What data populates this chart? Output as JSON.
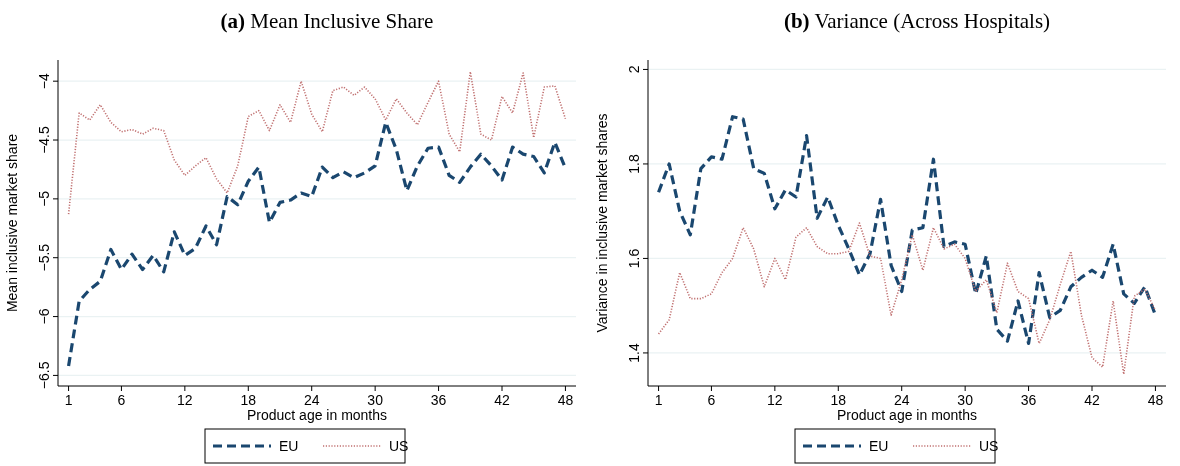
{
  "chart_data": [
    {
      "type": "line",
      "title": "(a) Mean Inclusive Share",
      "xlabel": "Product age in months",
      "ylabel": "Mean inclusive market share",
      "xlim": [
        0,
        49
      ],
      "xticks": [
        1,
        6,
        12,
        18,
        24,
        30,
        36,
        42,
        48
      ],
      "ylim": [
        -6.59,
        -3.82
      ],
      "yticks": [
        -6.5,
        -6,
        -5.5,
        -5,
        -4.5,
        -4
      ],
      "grid": "y",
      "legend": "bottom",
      "x": [
        1,
        2,
        3,
        4,
        5,
        6,
        7,
        8,
        9,
        10,
        11,
        12,
        13,
        14,
        15,
        16,
        17,
        18,
        19,
        20,
        21,
        22,
        23,
        24,
        25,
        26,
        27,
        28,
        29,
        30,
        31,
        32,
        33,
        34,
        35,
        36,
        37,
        38,
        39,
        40,
        41,
        42,
        43,
        44,
        45,
        46,
        47,
        48
      ],
      "series": [
        {
          "name": "EU",
          "color": "#1a476f",
          "line_style": "dashed",
          "values": [
            -6.42,
            -5.87,
            -5.77,
            -5.7,
            -5.43,
            -5.6,
            -5.47,
            -5.6,
            -5.48,
            -5.62,
            -5.28,
            -5.48,
            -5.42,
            -5.23,
            -5.39,
            -4.98,
            -5.05,
            -4.85,
            -4.73,
            -5.2,
            -5.03,
            -5.01,
            -4.95,
            -4.98,
            -4.73,
            -4.82,
            -4.77,
            -4.82,
            -4.78,
            -4.72,
            -4.35,
            -4.58,
            -4.93,
            -4.72,
            -4.57,
            -4.56,
            -4.8,
            -4.86,
            -4.73,
            -4.62,
            -4.72,
            -4.84,
            -4.56,
            -4.62,
            -4.64,
            -4.78,
            -4.52,
            -4.74
          ]
        },
        {
          "name": "US",
          "color": "#c07070",
          "line_style": "dotted",
          "values": [
            -5.13,
            -4.27,
            -4.33,
            -4.2,
            -4.35,
            -4.43,
            -4.41,
            -4.45,
            -4.4,
            -4.42,
            -4.67,
            -4.8,
            -4.72,
            -4.65,
            -4.83,
            -4.95,
            -4.72,
            -4.3,
            -4.25,
            -4.42,
            -4.2,
            -4.35,
            -4.0,
            -4.28,
            -4.43,
            -4.08,
            -4.05,
            -4.12,
            -4.05,
            -4.15,
            -4.33,
            -4.15,
            -4.27,
            -4.37,
            -4.18,
            -4.0,
            -4.45,
            -4.6,
            -3.92,
            -4.45,
            -4.5,
            -4.13,
            -4.27,
            -3.93,
            -4.48,
            -4.05,
            -4.04,
            -4.32
          ]
        }
      ]
    },
    {
      "type": "line",
      "title": "(b) Variance (Across Hospitals)",
      "xlabel": "Product age in months",
      "ylabel": "Variance in inclusive market shares",
      "xlim": [
        0,
        49
      ],
      "xticks": [
        1,
        6,
        12,
        18,
        24,
        30,
        36,
        42,
        48
      ],
      "ylim": [
        1.33,
        2.02
      ],
      "yticks": [
        1.4,
        1.6,
        1.8,
        2
      ],
      "grid": "y",
      "legend": "bottom",
      "x": [
        1,
        2,
        3,
        4,
        5,
        6,
        7,
        8,
        9,
        10,
        11,
        12,
        13,
        14,
        15,
        16,
        17,
        18,
        19,
        20,
        21,
        22,
        23,
        24,
        25,
        26,
        27,
        28,
        29,
        30,
        31,
        32,
        33,
        34,
        35,
        36,
        37,
        38,
        39,
        40,
        41,
        42,
        43,
        44,
        45,
        46,
        47,
        48
      ],
      "series": [
        {
          "name": "EU",
          "color": "#1a476f",
          "line_style": "dashed",
          "values": [
            1.74,
            1.8,
            1.7,
            1.65,
            1.79,
            1.815,
            1.81,
            1.9,
            1.895,
            1.79,
            1.78,
            1.705,
            1.745,
            1.73,
            1.86,
            1.685,
            1.73,
            1.67,
            1.62,
            1.565,
            1.61,
            1.725,
            1.585,
            1.53,
            1.66,
            1.665,
            1.81,
            1.625,
            1.635,
            1.63,
            1.525,
            1.605,
            1.45,
            1.425,
            1.51,
            1.42,
            1.57,
            1.475,
            1.49,
            1.54,
            1.56,
            1.575,
            1.56,
            1.63,
            1.525,
            1.505,
            1.54,
            1.48
          ]
        },
        {
          "name": "US",
          "color": "#c07070",
          "line_style": "dotted",
          "values": [
            1.44,
            1.47,
            1.57,
            1.515,
            1.515,
            1.525,
            1.57,
            1.6,
            1.665,
            1.62,
            1.54,
            1.6,
            1.555,
            1.645,
            1.665,
            1.625,
            1.61,
            1.61,
            1.615,
            1.675,
            1.605,
            1.6,
            1.48,
            1.555,
            1.65,
            1.575,
            1.665,
            1.62,
            1.63,
            1.6,
            1.53,
            1.555,
            1.485,
            1.59,
            1.53,
            1.515,
            1.42,
            1.47,
            1.545,
            1.615,
            1.48,
            1.39,
            1.37,
            1.51,
            1.355,
            1.52,
            1.535,
            1.49
          ]
        }
      ]
    }
  ]
}
